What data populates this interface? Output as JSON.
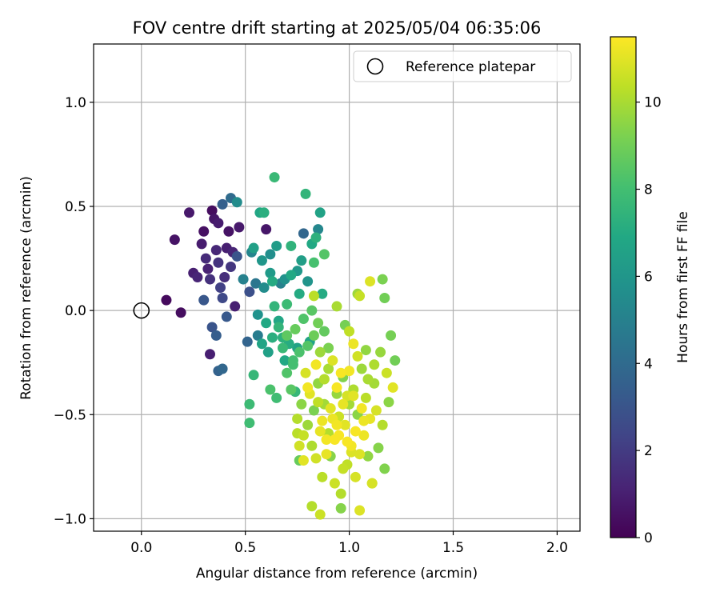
{
  "chart_data": {
    "type": "scatter",
    "title": "FOV centre drift starting at 2025/05/04 06:35:06",
    "xlabel": "Angular distance from reference (arcmin)",
    "ylabel": "Rotation from reference (arcmin)",
    "xlim": [
      -0.23,
      2.11
    ],
    "ylim": [
      -1.06,
      1.28
    ],
    "xticks": [
      0.0,
      0.5,
      1.0,
      1.5,
      2.0
    ],
    "xtick_labels": [
      "0.0",
      "0.5",
      "1.0",
      "1.5",
      "2.0"
    ],
    "yticks": [
      -1.0,
      -0.5,
      0.0,
      0.5,
      1.0
    ],
    "ytick_labels": [
      "−1.0",
      "−0.5",
      "0.0",
      "0.5",
      "1.0"
    ],
    "grid": true,
    "legend": {
      "position": "top-right",
      "entries": [
        "Reference platepar"
      ]
    },
    "reference_point": {
      "x": 0.0,
      "y": 0.0,
      "label": "Reference platepar"
    },
    "colorbar": {
      "label": "Hours from first FF file",
      "range": [
        0,
        11.5
      ],
      "ticks": [
        0,
        2,
        4,
        6,
        8,
        10
      ],
      "tick_labels": [
        "0",
        "2",
        "4",
        "6",
        "8",
        "10"
      ],
      "colormap": "viridis"
    },
    "series_note_color_is_hours": true,
    "points": [
      {
        "x": 0.12,
        "y": 0.05,
        "h": 0.3
      },
      {
        "x": 0.19,
        "y": -0.01,
        "h": 0.4
      },
      {
        "x": 0.16,
        "y": 0.34,
        "h": 0.6
      },
      {
        "x": 0.23,
        "y": 0.47,
        "h": 0.8
      },
      {
        "x": 0.25,
        "y": 0.18,
        "h": 1.0
      },
      {
        "x": 0.27,
        "y": 0.16,
        "h": 1.2
      },
      {
        "x": 0.29,
        "y": 0.32,
        "h": 0.9
      },
      {
        "x": 0.3,
        "y": 0.38,
        "h": 0.5
      },
      {
        "x": 0.31,
        "y": 0.25,
        "h": 1.4
      },
      {
        "x": 0.32,
        "y": 0.2,
        "h": 1.1
      },
      {
        "x": 0.33,
        "y": 0.15,
        "h": 1.6
      },
      {
        "x": 0.34,
        "y": 0.48,
        "h": 0.4
      },
      {
        "x": 0.35,
        "y": 0.44,
        "h": 0.7
      },
      {
        "x": 0.36,
        "y": 0.29,
        "h": 1.3
      },
      {
        "x": 0.37,
        "y": 0.42,
        "h": 0.9
      },
      {
        "x": 0.37,
        "y": 0.23,
        "h": 1.7
      },
      {
        "x": 0.38,
        "y": 0.11,
        "h": 2.2
      },
      {
        "x": 0.39,
        "y": 0.06,
        "h": 2.5
      },
      {
        "x": 0.4,
        "y": 0.16,
        "h": 1.5
      },
      {
        "x": 0.41,
        "y": 0.3,
        "h": 1.0
      },
      {
        "x": 0.42,
        "y": 0.38,
        "h": 0.6
      },
      {
        "x": 0.43,
        "y": 0.21,
        "h": 1.8
      },
      {
        "x": 0.44,
        "y": 0.28,
        "h": 1.2
      },
      {
        "x": 0.45,
        "y": 0.02,
        "h": 1.0
      },
      {
        "x": 0.46,
        "y": 0.26,
        "h": 3.0
      },
      {
        "x": 0.47,
        "y": 0.4,
        "h": 0.8
      },
      {
        "x": 0.33,
        "y": -0.21,
        "h": 1.0
      },
      {
        "x": 0.34,
        "y": -0.08,
        "h": 3.0
      },
      {
        "x": 0.36,
        "y": -0.12,
        "h": 3.4
      },
      {
        "x": 0.37,
        "y": -0.29,
        "h": 3.6
      },
      {
        "x": 0.39,
        "y": -0.28,
        "h": 3.8
      },
      {
        "x": 0.41,
        "y": -0.03,
        "h": 3.2
      },
      {
        "x": 0.3,
        "y": 0.05,
        "h": 3.1
      },
      {
        "x": 0.39,
        "y": 0.51,
        "h": 3.5
      },
      {
        "x": 0.43,
        "y": 0.54,
        "h": 4.0
      },
      {
        "x": 0.46,
        "y": 0.52,
        "h": 5.5
      },
      {
        "x": 0.49,
        "y": 0.15,
        "h": 5.0
      },
      {
        "x": 0.51,
        "y": -0.15,
        "h": 3.7
      },
      {
        "x": 0.52,
        "y": 0.09,
        "h": 2.8
      },
      {
        "x": 0.53,
        "y": 0.28,
        "h": 5.2
      },
      {
        "x": 0.54,
        "y": 0.3,
        "h": 6.5
      },
      {
        "x": 0.55,
        "y": 0.13,
        "h": 4.5
      },
      {
        "x": 0.56,
        "y": -0.02,
        "h": 5.8
      },
      {
        "x": 0.56,
        "y": -0.12,
        "h": 4.8
      },
      {
        "x": 0.57,
        "y": 0.47,
        "h": 6.8
      },
      {
        "x": 0.58,
        "y": 0.24,
        "h": 6.0
      },
      {
        "x": 0.59,
        "y": 0.47,
        "h": 7.2
      },
      {
        "x": 0.59,
        "y": 0.11,
        "h": 5.5
      },
      {
        "x": 0.6,
        "y": 0.39,
        "h": 0.7
      },
      {
        "x": 0.61,
        "y": -0.2,
        "h": 6.5
      },
      {
        "x": 0.62,
        "y": 0.18,
        "h": 6.2
      },
      {
        "x": 0.63,
        "y": 0.14,
        "h": 7.0
      },
      {
        "x": 0.64,
        "y": 0.02,
        "h": 7.5
      },
      {
        "x": 0.65,
        "y": 0.31,
        "h": 6.3
      },
      {
        "x": 0.64,
        "y": 0.64,
        "h": 7.7
      },
      {
        "x": 0.66,
        "y": -0.05,
        "h": 6.8
      },
      {
        "x": 0.67,
        "y": 0.13,
        "h": 5.0
      },
      {
        "x": 0.68,
        "y": -0.13,
        "h": 7.3
      },
      {
        "x": 0.69,
        "y": -0.24,
        "h": 6.9
      },
      {
        "x": 0.7,
        "y": 0.03,
        "h": 7.8
      },
      {
        "x": 0.71,
        "y": -0.16,
        "h": 7.1
      },
      {
        "x": 0.72,
        "y": 0.31,
        "h": 7.4
      },
      {
        "x": 0.73,
        "y": -0.26,
        "h": 8.0
      },
      {
        "x": 0.74,
        "y": -0.39,
        "h": 7.6
      },
      {
        "x": 0.75,
        "y": -0.18,
        "h": 6.6
      },
      {
        "x": 0.76,
        "y": 0.08,
        "h": 7.0
      },
      {
        "x": 0.77,
        "y": 0.24,
        "h": 6.4
      },
      {
        "x": 0.78,
        "y": 0.37,
        "h": 3.8
      },
      {
        "x": 0.79,
        "y": 0.56,
        "h": 7.5
      },
      {
        "x": 0.8,
        "y": 0.14,
        "h": 5.9
      },
      {
        "x": 0.81,
        "y": -0.15,
        "h": 6.7
      },
      {
        "x": 0.82,
        "y": 0.32,
        "h": 6.9
      },
      {
        "x": 0.83,
        "y": 0.23,
        "h": 8.1
      },
      {
        "x": 0.84,
        "y": 0.35,
        "h": 7.3
      },
      {
        "x": 0.85,
        "y": 0.39,
        "h": 5.3
      },
      {
        "x": 0.86,
        "y": 0.47,
        "h": 6.6
      },
      {
        "x": 0.87,
        "y": 0.08,
        "h": 7.0
      },
      {
        "x": 0.88,
        "y": 0.27,
        "h": 8.4
      },
      {
        "x": 0.52,
        "y": -0.45,
        "h": 7.8
      },
      {
        "x": 0.52,
        "y": -0.54,
        "h": 7.9
      },
      {
        "x": 0.54,
        "y": -0.31,
        "h": 7.6
      },
      {
        "x": 0.62,
        "y": -0.38,
        "h": 8.2
      },
      {
        "x": 0.65,
        "y": -0.42,
        "h": 7.9
      },
      {
        "x": 0.7,
        "y": -0.3,
        "h": 8.3
      },
      {
        "x": 0.72,
        "y": -0.38,
        "h": 8.5
      },
      {
        "x": 0.75,
        "y": -0.52,
        "h": 10.2
      },
      {
        "x": 0.76,
        "y": -0.72,
        "h": 8.8
      },
      {
        "x": 0.77,
        "y": -0.45,
        "h": 9.5
      },
      {
        "x": 0.78,
        "y": -0.6,
        "h": 10.5
      },
      {
        "x": 0.79,
        "y": -0.3,
        "h": 10.8
      },
      {
        "x": 0.8,
        "y": -0.55,
        "h": 9.8
      },
      {
        "x": 0.81,
        "y": -0.4,
        "h": 11.0
      },
      {
        "x": 0.82,
        "y": -0.65,
        "h": 10.1
      },
      {
        "x": 0.83,
        "y": -0.48,
        "h": 9.2
      },
      {
        "x": 0.84,
        "y": -0.71,
        "h": 10.7
      },
      {
        "x": 0.85,
        "y": -0.35,
        "h": 9.6
      },
      {
        "x": 0.86,
        "y": -0.58,
        "h": 11.1
      },
      {
        "x": 0.87,
        "y": -0.8,
        "h": 10.3
      },
      {
        "x": 0.88,
        "y": -0.45,
        "h": 9.9
      },
      {
        "x": 0.89,
        "y": -0.62,
        "h": 11.3
      },
      {
        "x": 0.9,
        "y": -0.28,
        "h": 10.0
      },
      {
        "x": 0.91,
        "y": -0.7,
        "h": 9.4
      },
      {
        "x": 0.92,
        "y": -0.52,
        "h": 11.2
      },
      {
        "x": 0.93,
        "y": -0.83,
        "h": 10.6
      },
      {
        "x": 0.94,
        "y": -0.4,
        "h": 9.7
      },
      {
        "x": 0.95,
        "y": -0.6,
        "h": 11.4
      },
      {
        "x": 0.96,
        "y": -0.88,
        "h": 10.2
      },
      {
        "x": 0.97,
        "y": -0.32,
        "h": 9.3
      },
      {
        "x": 0.98,
        "y": -0.55,
        "h": 11.0
      },
      {
        "x": 0.99,
        "y": -0.74,
        "h": 10.4
      },
      {
        "x": 1.0,
        "y": -0.45,
        "h": 9.9
      },
      {
        "x": 1.01,
        "y": -0.65,
        "h": 11.3
      },
      {
        "x": 1.02,
        "y": -0.38,
        "h": 10.1
      },
      {
        "x": 1.03,
        "y": -0.8,
        "h": 10.8
      },
      {
        "x": 1.04,
        "y": -0.5,
        "h": 9.5
      },
      {
        "x": 1.05,
        "y": -0.96,
        "h": 10.9
      },
      {
        "x": 1.06,
        "y": -0.28,
        "h": 9.8
      },
      {
        "x": 1.07,
        "y": -0.6,
        "h": 11.2
      },
      {
        "x": 1.08,
        "y": -0.42,
        "h": 10.3
      },
      {
        "x": 1.09,
        "y": -0.7,
        "h": 9.6
      },
      {
        "x": 1.1,
        "y": -0.52,
        "h": 11.1
      },
      {
        "x": 1.11,
        "y": -0.83,
        "h": 10.5
      },
      {
        "x": 1.12,
        "y": -0.35,
        "h": 9.9
      },
      {
        "x": 1.13,
        "y": -0.48,
        "h": 10.8
      },
      {
        "x": 1.14,
        "y": -0.66,
        "h": 9.4
      },
      {
        "x": 1.15,
        "y": -0.2,
        "h": 9.7
      },
      {
        "x": 1.16,
        "y": -0.55,
        "h": 10.2
      },
      {
        "x": 1.17,
        "y": -0.76,
        "h": 9.3
      },
      {
        "x": 1.18,
        "y": -0.3,
        "h": 10.6
      },
      {
        "x": 1.19,
        "y": -0.44,
        "h": 9.5
      },
      {
        "x": 1.2,
        "y": -0.12,
        "h": 9.1
      },
      {
        "x": 1.21,
        "y": -0.37,
        "h": 11.0
      },
      {
        "x": 1.22,
        "y": -0.24,
        "h": 9.0
      },
      {
        "x": 1.1,
        "y": 0.14,
        "h": 10.9
      },
      {
        "x": 1.16,
        "y": 0.15,
        "h": 9.2
      },
      {
        "x": 1.17,
        "y": 0.06,
        "h": 9.0
      },
      {
        "x": 1.05,
        "y": 0.07,
        "h": 10.5
      },
      {
        "x": 1.04,
        "y": 0.08,
        "h": 9.8
      },
      {
        "x": 0.83,
        "y": 0.07,
        "h": 10.3
      },
      {
        "x": 0.82,
        "y": -0.94,
        "h": 10.2
      },
      {
        "x": 0.86,
        "y": -0.98,
        "h": 10.6
      },
      {
        "x": 0.96,
        "y": -0.95,
        "h": 9.4
      },
      {
        "x": 1.11,
        "y": -0.83,
        "h": 10.8
      },
      {
        "x": 0.76,
        "y": -0.65,
        "h": 10.7
      },
      {
        "x": 0.78,
        "y": -0.72,
        "h": 11.0
      },
      {
        "x": 0.75,
        "y": -0.59,
        "h": 10.3
      },
      {
        "x": 0.94,
        "y": 0.02,
        "h": 10.0
      },
      {
        "x": 0.98,
        "y": -0.07,
        "h": 9.1
      },
      {
        "x": 1.0,
        "y": -0.1,
        "h": 10.4
      },
      {
        "x": 1.02,
        "y": -0.16,
        "h": 11.2
      },
      {
        "x": 1.04,
        "y": -0.22,
        "h": 10.7
      },
      {
        "x": 1.08,
        "y": -0.19,
        "h": 9.6
      },
      {
        "x": 1.12,
        "y": -0.26,
        "h": 10.1
      },
      {
        "x": 0.9,
        "y": -0.18,
        "h": 9.2
      },
      {
        "x": 0.92,
        "y": -0.24,
        "h": 10.9
      },
      {
        "x": 0.86,
        "y": -0.2,
        "h": 9.8
      },
      {
        "x": 0.84,
        "y": -0.26,
        "h": 11.3
      },
      {
        "x": 0.88,
        "y": -0.33,
        "h": 10.2
      },
      {
        "x": 0.94,
        "y": -0.37,
        "h": 11.4
      },
      {
        "x": 0.97,
        "y": -0.45,
        "h": 11.1
      },
      {
        "x": 1.0,
        "y": -0.29,
        "h": 11.3
      },
      {
        "x": 1.03,
        "y": -0.58,
        "h": 11.4
      },
      {
        "x": 0.91,
        "y": -0.47,
        "h": 11.0
      },
      {
        "x": 0.95,
        "y": -0.51,
        "h": 10.6
      },
      {
        "x": 0.87,
        "y": -0.53,
        "h": 11.2
      },
      {
        "x": 0.93,
        "y": -0.62,
        "h": 11.4
      },
      {
        "x": 1.01,
        "y": -0.68,
        "h": 10.9
      },
      {
        "x": 0.97,
        "y": -0.76,
        "h": 10.5
      },
      {
        "x": 0.89,
        "y": -0.69,
        "h": 11.1
      },
      {
        "x": 0.99,
        "y": -0.41,
        "h": 10.8
      },
      {
        "x": 1.06,
        "y": -0.47,
        "h": 11.3
      },
      {
        "x": 1.09,
        "y": -0.33,
        "h": 10.0
      },
      {
        "x": 0.85,
        "y": -0.44,
        "h": 10.4
      },
      {
        "x": 0.8,
        "y": -0.37,
        "h": 11.3
      },
      {
        "x": 0.96,
        "y": -0.3,
        "h": 11.4
      },
      {
        "x": 1.02,
        "y": -0.41,
        "h": 11.0
      },
      {
        "x": 0.94,
        "y": -0.55,
        "h": 11.3
      },
      {
        "x": 0.9,
        "y": -0.59,
        "h": 10.2
      },
      {
        "x": 0.99,
        "y": -0.63,
        "h": 11.4
      },
      {
        "x": 1.05,
        "y": -0.69,
        "h": 10.9
      },
      {
        "x": 1.07,
        "y": -0.53,
        "h": 11.2
      },
      {
        "x": 0.7,
        "y": -0.12,
        "h": 8.6
      },
      {
        "x": 0.74,
        "y": -0.09,
        "h": 8.8
      },
      {
        "x": 0.78,
        "y": -0.04,
        "h": 8.3
      },
      {
        "x": 0.82,
        "y": 0.0,
        "h": 8.5
      },
      {
        "x": 0.85,
        "y": -0.06,
        "h": 9.0
      },
      {
        "x": 0.88,
        "y": -0.1,
        "h": 8.7
      },
      {
        "x": 0.83,
        "y": -0.12,
        "h": 8.9
      },
      {
        "x": 0.8,
        "y": -0.17,
        "h": 8.4
      },
      {
        "x": 0.76,
        "y": -0.2,
        "h": 8.2
      },
      {
        "x": 0.73,
        "y": -0.24,
        "h": 8.0
      },
      {
        "x": 0.68,
        "y": -0.18,
        "h": 7.7
      },
      {
        "x": 0.66,
        "y": -0.08,
        "h": 7.5
      },
      {
        "x": 0.63,
        "y": -0.13,
        "h": 7.2
      },
      {
        "x": 0.6,
        "y": -0.06,
        "h": 6.9
      },
      {
        "x": 0.58,
        "y": -0.16,
        "h": 6.7
      },
      {
        "x": 0.72,
        "y": 0.17,
        "h": 6.9
      },
      {
        "x": 0.62,
        "y": 0.27,
        "h": 5.6
      },
      {
        "x": 0.69,
        "y": 0.15,
        "h": 5.8
      },
      {
        "x": 0.75,
        "y": 0.19,
        "h": 6.1
      }
    ]
  }
}
